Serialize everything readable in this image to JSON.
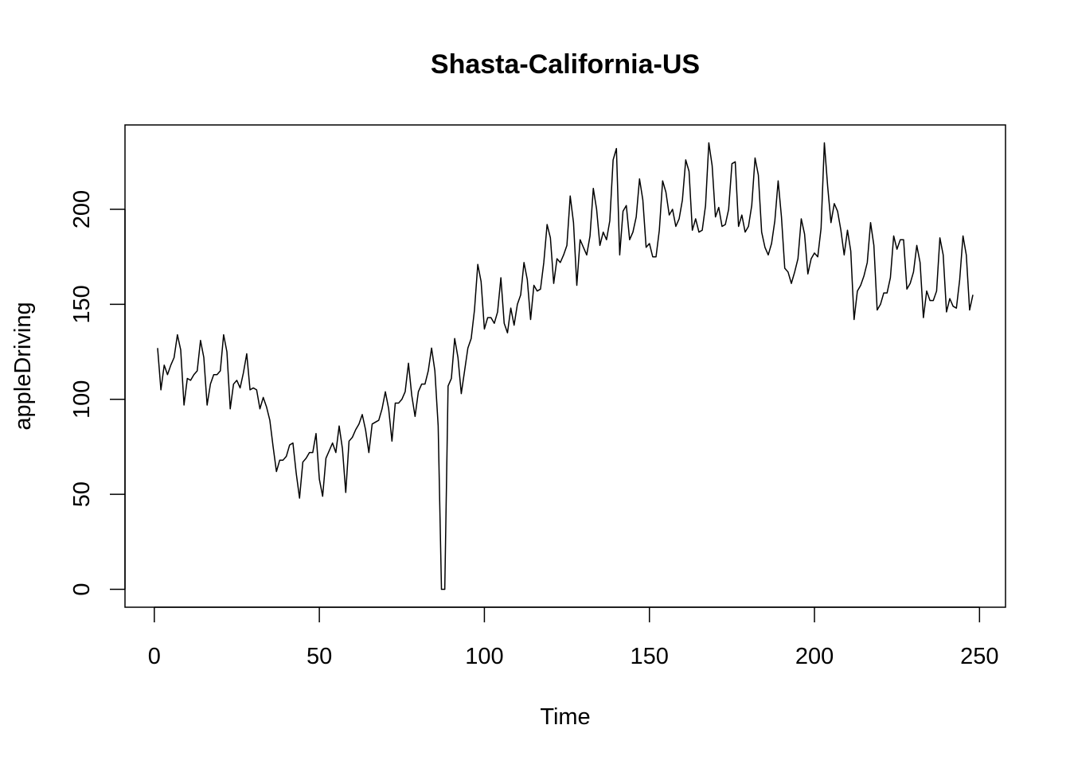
{
  "chart_data": {
    "type": "line",
    "title": "Shasta-California-US",
    "xlabel": "Time",
    "ylabel": "appleDriving",
    "x": [
      1,
      2,
      3,
      4,
      5,
      6,
      7,
      8,
      9,
      10,
      11,
      12,
      13,
      14,
      15,
      16,
      17,
      18,
      19,
      20,
      21,
      22,
      23,
      24,
      25,
      26,
      27,
      28,
      29,
      30,
      31,
      32,
      33,
      34,
      35,
      36,
      37,
      38,
      39,
      40,
      41,
      42,
      43,
      44,
      45,
      46,
      47,
      48,
      49,
      50,
      51,
      52,
      53,
      54,
      55,
      56,
      57,
      58,
      59,
      60,
      61,
      62,
      63,
      64,
      65,
      66,
      67,
      68,
      69,
      70,
      71,
      72,
      73,
      74,
      75,
      76,
      77,
      78,
      79,
      80,
      81,
      82,
      83,
      84,
      85,
      86,
      87,
      88,
      89,
      90,
      91,
      92,
      93,
      94,
      95,
      96,
      97,
      98,
      99,
      100,
      101,
      102,
      103,
      104,
      105,
      106,
      107,
      108,
      109,
      110,
      111,
      112,
      113,
      114,
      115,
      116,
      117,
      118,
      119,
      120,
      121,
      122,
      123,
      124,
      125,
      126,
      127,
      128,
      129,
      130,
      131,
      132,
      133,
      134,
      135,
      136,
      137,
      138,
      139,
      140,
      141,
      142,
      143,
      144,
      145,
      146,
      147,
      148,
      149,
      150,
      151,
      152,
      153,
      154,
      155,
      156,
      157,
      158,
      159,
      160,
      161,
      162,
      163,
      164,
      165,
      166,
      167,
      168,
      169,
      170,
      171,
      172,
      173,
      174,
      175,
      176,
      177,
      178,
      179,
      180,
      181,
      182,
      183,
      184,
      185,
      186,
      187,
      188,
      189,
      190,
      191,
      192,
      193,
      194,
      195,
      196,
      197,
      198,
      199,
      200,
      201,
      202,
      203,
      204,
      205,
      206,
      207,
      208,
      209,
      210,
      211,
      212,
      213,
      214,
      215,
      216,
      217,
      218,
      219,
      220,
      221,
      222,
      223,
      224,
      225,
      226,
      227,
      228,
      229,
      230,
      231,
      232,
      233,
      234,
      235,
      236,
      237,
      238,
      239,
      240,
      241,
      242,
      243,
      244,
      245,
      246,
      247,
      248
    ],
    "series": [
      {
        "name": "appleDriving",
        "color": "#000000",
        "values": [
          127,
          105,
          118,
          113,
          118,
          122,
          134,
          126,
          97,
          111,
          110,
          113,
          115,
          131,
          122,
          97,
          108,
          113,
          113,
          115,
          134,
          125,
          95,
          108,
          110,
          106,
          114,
          124,
          105,
          106,
          105,
          95,
          101,
          96,
          89,
          75,
          62,
          68,
          68,
          70,
          76,
          77,
          61,
          48,
          67,
          69,
          72,
          72,
          82,
          58,
          49,
          69,
          73,
          77,
          72,
          86,
          74,
          51,
          78,
          80,
          84,
          87,
          92,
          84,
          72,
          87,
          88,
          89,
          95,
          104,
          95,
          78,
          98,
          98,
          100,
          104,
          119,
          102,
          91,
          104,
          108,
          108,
          115,
          127,
          115,
          86,
          0,
          0,
          107,
          111,
          132,
          122,
          103,
          115,
          127,
          132,
          147,
          171,
          162,
          137,
          143,
          143,
          140,
          146,
          164,
          140,
          135,
          148,
          139,
          150,
          155,
          172,
          163,
          142,
          160,
          157,
          158,
          172,
          192,
          185,
          161,
          174,
          172,
          176,
          181,
          207,
          193,
          160,
          184,
          180,
          176,
          186,
          211,
          200,
          181,
          188,
          184,
          194,
          226,
          232,
          176,
          199,
          202,
          184,
          188,
          196,
          216,
          205,
          180,
          182,
          175,
          175,
          189,
          215,
          209,
          197,
          200,
          191,
          195,
          205,
          226,
          220,
          189,
          195,
          188,
          189,
          202,
          235,
          223,
          196,
          201,
          191,
          192,
          200,
          224,
          225,
          191,
          197,
          188,
          191,
          202,
          227,
          218,
          188,
          180,
          176,
          182,
          194,
          215,
          196,
          169,
          167,
          161,
          167,
          174,
          195,
          187,
          166,
          174,
          177,
          175,
          190,
          235,
          212,
          193,
          203,
          199,
          189,
          176,
          189,
          178,
          142,
          157,
          160,
          165,
          172,
          193,
          181,
          147,
          150,
          156,
          156,
          164,
          186,
          179,
          184,
          184,
          158,
          161,
          167,
          181,
          172,
          143,
          157,
          152,
          152,
          157,
          185,
          176,
          146,
          153,
          149,
          148,
          163,
          186,
          176,
          147,
          155
        ]
      }
    ],
    "xlim": [
      -8.88,
      257.88
    ],
    "xticks": [
      0,
      50,
      100,
      150,
      200,
      250
    ],
    "ylim": [
      -9.4,
      244.4
    ],
    "yticks": [
      0,
      50,
      100,
      150,
      200
    ]
  }
}
